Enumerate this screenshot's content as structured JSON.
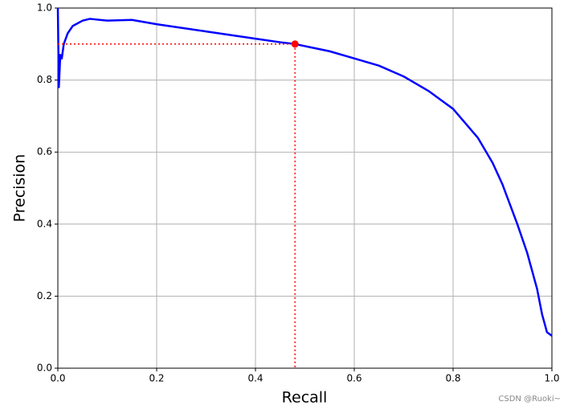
{
  "chart_data": {
    "type": "line",
    "x_label": "Recall",
    "y_label": "Precision",
    "x": [
      0.0,
      0.002,
      0.005,
      0.008,
      0.012,
      0.02,
      0.03,
      0.05,
      0.065,
      0.1,
      0.15,
      0.2,
      0.25,
      0.3,
      0.35,
      0.4,
      0.45,
      0.48,
      0.55,
      0.6,
      0.65,
      0.7,
      0.75,
      0.8,
      0.85,
      0.88,
      0.9,
      0.93,
      0.95,
      0.97,
      0.98,
      0.99,
      1.0
    ],
    "series": [
      {
        "name": "Precision",
        "color": "#0000ff",
        "values": [
          1.0,
          0.78,
          0.87,
          0.86,
          0.9,
          0.93,
          0.95,
          0.965,
          0.97,
          0.965,
          0.967,
          0.955,
          0.945,
          0.935,
          0.925,
          0.915,
          0.905,
          0.9,
          0.88,
          0.86,
          0.84,
          0.81,
          0.77,
          0.72,
          0.64,
          0.57,
          0.51,
          0.4,
          0.32,
          0.22,
          0.15,
          0.1,
          0.09
        ]
      }
    ],
    "point": {
      "x": 0.48,
      "y": 0.9,
      "color": "#ff0000"
    },
    "xlim": [
      0.0,
      1.0
    ],
    "ylim": [
      0.0,
      1.0
    ],
    "xticks": [
      {
        "value": 0.0,
        "label": "0.0"
      },
      {
        "value": 0.2,
        "label": "0.2"
      },
      {
        "value": 0.4,
        "label": "0.4"
      },
      {
        "value": 0.6,
        "label": "0.6"
      },
      {
        "value": 0.8,
        "label": "0.8"
      },
      {
        "value": 1.0,
        "label": "1.0"
      }
    ],
    "yticks": [
      {
        "value": 0.0,
        "label": "0.0"
      },
      {
        "value": 0.2,
        "label": "0.2"
      },
      {
        "value": 0.4,
        "label": "0.4"
      },
      {
        "value": 0.6,
        "label": "0.6"
      },
      {
        "value": 0.8,
        "label": "0.8"
      },
      {
        "value": 1.0,
        "label": "1.0"
      }
    ],
    "grid": true,
    "watermark": "CSDN @Ruoki~"
  }
}
